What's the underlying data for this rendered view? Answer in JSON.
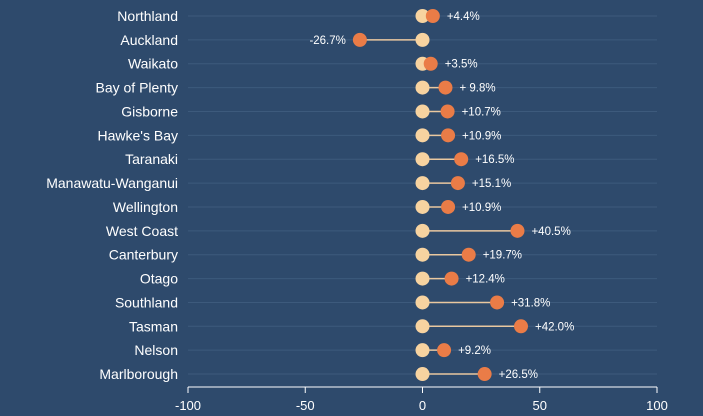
{
  "colors": {
    "background": "#2e4a6c",
    "gridline": "#3d5a7c",
    "baseline_dot": "#f7d3a0",
    "change_dot": "#ea7c47",
    "connector": "#e9c8a0",
    "text": "#ffffff"
  },
  "chart_data": {
    "type": "dumbbell",
    "title": "",
    "xlabel": "",
    "ylabel": "",
    "xlim": [
      -100,
      100
    ],
    "x_ticks": [
      -100,
      -50,
      0,
      50,
      100
    ],
    "x_tick_labels": [
      "-100",
      "-50",
      "0",
      "50",
      "100"
    ],
    "baseline_value": 0,
    "grid": "horizontal",
    "categories": [
      "Northland",
      "Auckland",
      "Waikato",
      "Bay of Plenty",
      "Gisborne",
      "Hawke's Bay",
      "Taranaki",
      "Manawatu-Wanganui",
      "Wellington",
      "West Coast",
      "Canterbury",
      "Otago",
      "Southland",
      "Tasman",
      "Nelson",
      "Marlborough"
    ],
    "values": [
      4.4,
      -26.7,
      3.5,
      9.8,
      10.7,
      10.9,
      16.5,
      15.1,
      10.9,
      40.5,
      19.7,
      12.4,
      31.8,
      42.0,
      9.2,
      26.5
    ],
    "value_labels": [
      "+4.4%",
      "-26.7%",
      "+3.5%",
      "+ 9.8%",
      "+10.7%",
      "+10.9%",
      "+16.5%",
      "+15.1%",
      "+10.9%",
      "+40.5%",
      "+19.7%",
      "+12.4%",
      "+31.8%",
      "+42.0%",
      "+9.2%",
      "+26.5%"
    ]
  }
}
